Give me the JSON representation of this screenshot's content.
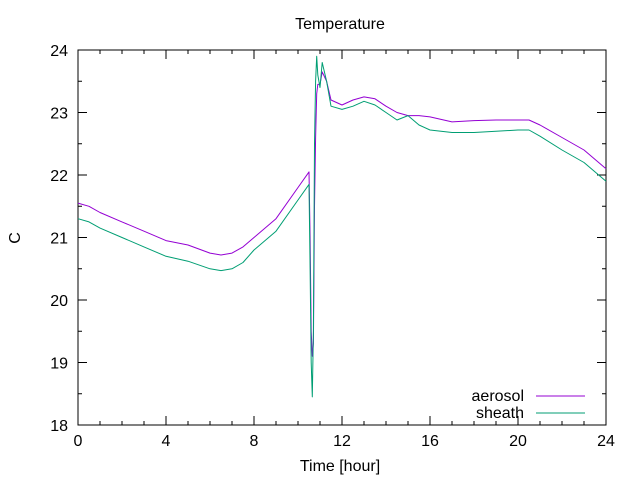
{
  "chart_data": {
    "type": "line",
    "title": "Temperature",
    "xlabel": "Time [hour]",
    "ylabel": "C",
    "xlim": [
      0,
      24
    ],
    "ylim": [
      18,
      24
    ],
    "xticks": [
      0,
      4,
      8,
      12,
      16,
      20,
      24
    ],
    "yticks": [
      18,
      19,
      20,
      21,
      22,
      23,
      24
    ],
    "grid": false,
    "legend_position": "bottom-right",
    "series": [
      {
        "name": "aerosol",
        "color": "#9400d3",
        "x": [
          0,
          0.5,
          1,
          2,
          3,
          4,
          5,
          6,
          6.5,
          7,
          7.5,
          8,
          9,
          10,
          10.5,
          10.55,
          10.6,
          10.65,
          10.7,
          10.75,
          10.8,
          10.85,
          10.9,
          11.0,
          11.1,
          11.3,
          11.5,
          12,
          12.5,
          13,
          13.5,
          14,
          14.5,
          15,
          15.5,
          16,
          17,
          18,
          19,
          20,
          20.5,
          21,
          22,
          23,
          24
        ],
        "y": [
          21.55,
          21.5,
          21.4,
          21.25,
          21.1,
          20.95,
          20.88,
          20.75,
          20.72,
          20.75,
          20.85,
          21.0,
          21.3,
          21.8,
          22.05,
          21.0,
          19.5,
          19.1,
          19.3,
          21.5,
          22.6,
          23.3,
          23.45,
          23.45,
          23.65,
          23.5,
          23.2,
          23.12,
          23.2,
          23.25,
          23.22,
          23.1,
          23.0,
          22.95,
          22.95,
          22.93,
          22.85,
          22.87,
          22.88,
          22.88,
          22.88,
          22.8,
          22.6,
          22.4,
          22.1
        ]
      },
      {
        "name": "sheath",
        "color": "#009e73",
        "x": [
          0,
          0.5,
          1,
          2,
          3,
          4,
          5,
          6,
          6.5,
          7,
          7.5,
          8,
          9,
          10,
          10.5,
          10.55,
          10.6,
          10.65,
          10.7,
          10.75,
          10.8,
          10.85,
          10.9,
          11.0,
          11.1,
          11.3,
          11.5,
          12,
          12.5,
          13,
          13.5,
          14,
          14.5,
          15,
          15.5,
          16,
          17,
          18,
          19,
          20,
          20.5,
          21,
          22,
          23,
          24
        ],
        "y": [
          21.3,
          21.25,
          21.15,
          21.0,
          20.85,
          20.7,
          20.62,
          20.5,
          20.47,
          20.5,
          20.6,
          20.8,
          21.1,
          21.6,
          21.85,
          20.5,
          19.0,
          18.45,
          19.5,
          22.5,
          23.5,
          23.9,
          23.6,
          23.4,
          23.8,
          23.5,
          23.1,
          23.05,
          23.1,
          23.18,
          23.12,
          23.0,
          22.88,
          22.95,
          22.8,
          22.72,
          22.68,
          22.68,
          22.7,
          22.72,
          22.72,
          22.62,
          22.4,
          22.2,
          21.9
        ]
      }
    ]
  }
}
